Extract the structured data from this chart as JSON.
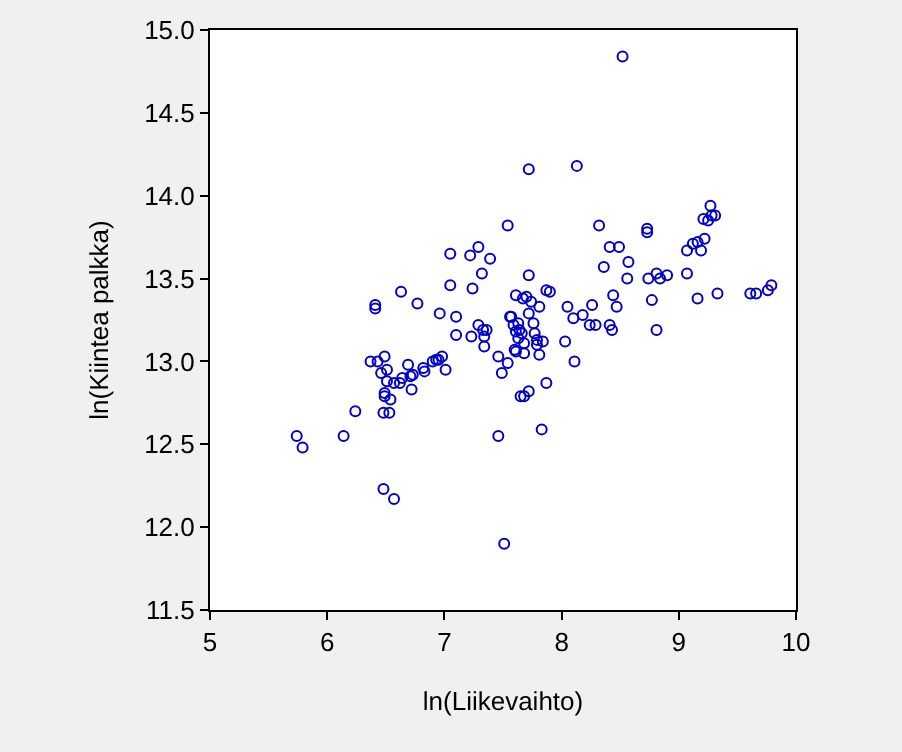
{
  "chart_data": {
    "type": "scatter",
    "xlabel": "ln(Liikevaihto)",
    "ylabel": "ln(Kiintea palkka)",
    "xlim": [
      5,
      10
    ],
    "xticks": [
      5,
      6,
      7,
      8,
      9,
      10
    ],
    "ylim": [
      11.5,
      15
    ],
    "yticks": [
      11.5,
      {
        "value": 12,
        "label": "12.0"
      },
      12.5,
      {
        "value": 13,
        "label": "13.0"
      },
      13.5,
      {
        "value": 14,
        "label": "14.0"
      },
      14.5,
      {
        "value": 15,
        "label": "15.0"
      }
    ],
    "grid": false,
    "marker": "circle",
    "series": [
      {
        "color": "#0000cc",
        "x": [
          5.74,
          5.79,
          6.14,
          6.24,
          6.41,
          6.41,
          6.63,
          6.77,
          6.48,
          6.57,
          6.37,
          6.43,
          6.49,
          6.51,
          6.46,
          6.51,
          6.57,
          6.62,
          6.64,
          6.69,
          6.71,
          6.73,
          6.72,
          6.49,
          6.49,
          6.48,
          6.53,
          6.54,
          6.82,
          6.83,
          6.9,
          6.93,
          6.95,
          6.98,
          7.01,
          6.96,
          7.05,
          7.05,
          7.1,
          7.1,
          7.22,
          7.29,
          7.39,
          7.32,
          7.24,
          7.23,
          7.29,
          7.33,
          7.36,
          7.34,
          7.34,
          7.46,
          7.54,
          7.49,
          7.46,
          7.51,
          7.54,
          7.61,
          7.56,
          7.59,
          7.61,
          7.63,
          7.6,
          7.65,
          8.52,
          7.72,
          8.13,
          8.32,
          7.72,
          7.67,
          7.7,
          7.74,
          7.87,
          7.9,
          7.57,
          7.63,
          7.64,
          7.66,
          7.76,
          7.77,
          7.79,
          7.79,
          7.84,
          7.68,
          7.72,
          7.81,
          7.61,
          7.68,
          7.81,
          7.68,
          7.72,
          7.87,
          7.83,
          8.03,
          8.05,
          8.1,
          8.18,
          8.26,
          8.24,
          8.29,
          8.41,
          8.43,
          8.11,
          8.36,
          8.41,
          8.49,
          8.57,
          8.56,
          8.44,
          8.47,
          8.73,
          8.73,
          8.74,
          8.81,
          8.84,
          8.9,
          8.77,
          8.81,
          9.07,
          9.16,
          9.33,
          9.07,
          9.12,
          9.16,
          9.19,
          9.22,
          9.21,
          9.25,
          9.28,
          9.27,
          9.31,
          9.61,
          9.66,
          9.76,
          9.79
        ],
        "values": [
          12.55,
          12.48,
          12.55,
          12.7,
          13.34,
          13.32,
          13.42,
          13.35,
          12.23,
          12.17,
          13.0,
          13.0,
          13.03,
          12.95,
          12.93,
          12.88,
          12.87,
          12.87,
          12.9,
          12.98,
          12.91,
          12.92,
          12.83,
          12.79,
          12.81,
          12.69,
          12.69,
          12.77,
          12.96,
          12.94,
          13.0,
          13.01,
          13.01,
          13.03,
          12.95,
          13.29,
          13.65,
          13.46,
          13.27,
          13.16,
          13.64,
          13.69,
          13.62,
          13.53,
          13.44,
          13.15,
          13.22,
          13.19,
          13.19,
          13.15,
          13.09,
          13.03,
          12.99,
          12.93,
          12.55,
          11.9,
          13.82,
          13.4,
          13.27,
          13.22,
          13.18,
          13.14,
          13.07,
          12.79,
          14.84,
          14.16,
          14.18,
          13.82,
          13.52,
          13.38,
          13.39,
          13.36,
          13.43,
          13.42,
          13.27,
          13.23,
          13.19,
          13.17,
          13.23,
          13.17,
          13.13,
          13.1,
          13.12,
          13.11,
          13.29,
          13.33,
          13.06,
          13.05,
          13.04,
          12.79,
          12.82,
          12.87,
          12.59,
          13.12,
          13.33,
          13.26,
          13.28,
          13.34,
          13.22,
          13.22,
          13.22,
          13.19,
          13.0,
          13.57,
          13.69,
          13.69,
          13.6,
          13.5,
          13.4,
          13.33,
          13.8,
          13.78,
          13.5,
          13.53,
          13.5,
          13.52,
          13.37,
          13.19,
          13.53,
          13.38,
          13.41,
          13.67,
          13.71,
          13.72,
          13.67,
          13.74,
          13.86,
          13.85,
          13.88,
          13.94,
          13.88,
          13.41,
          13.41,
          13.43,
          13.46
        ]
      }
    ]
  }
}
